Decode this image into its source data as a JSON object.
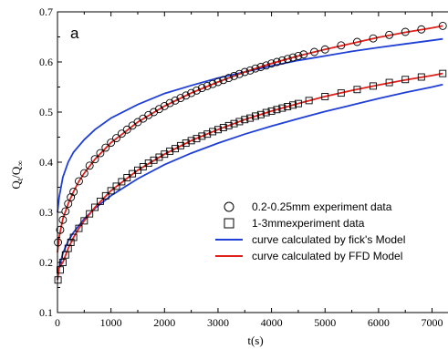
{
  "chart_data": {
    "type": "scatter",
    "panel_label": "a",
    "xlabel": "t(s)",
    "ylabel": "Q_t/Q_∞",
    "xlim": [
      0,
      7400
    ],
    "ylim": [
      0.1,
      0.7
    ],
    "x_ticks": [
      0,
      1000,
      2000,
      3000,
      4000,
      5000,
      6000,
      7000
    ],
    "y_ticks": [
      0.1,
      0.2,
      0.3,
      0.4,
      0.5,
      0.6,
      0.7
    ],
    "legend_position": "lower-right",
    "grid": false,
    "series": [
      {
        "name": "0.2-0.25mm experiment data",
        "kind": "scatter",
        "marker": "circle",
        "color": "#000000",
        "x": [
          10,
          50,
          100,
          150,
          200,
          250,
          300,
          400,
          500,
          600,
          700,
          800,
          900,
          1000,
          1100,
          1200,
          1300,
          1400,
          1500,
          1600,
          1700,
          1800,
          1900,
          2000,
          2100,
          2200,
          2300,
          2400,
          2500,
          2600,
          2700,
          2800,
          2900,
          3000,
          3100,
          3200,
          3300,
          3400,
          3500,
          3600,
          3700,
          3800,
          3900,
          4000,
          4100,
          4200,
          4300,
          4400,
          4500,
          4600,
          4800,
          5000,
          5300,
          5600,
          5900,
          6200,
          6500,
          6800,
          7200
        ],
        "y": [
          0.24,
          0.265,
          0.285,
          0.302,
          0.317,
          0.33,
          0.341,
          0.362,
          0.378,
          0.393,
          0.406,
          0.418,
          0.429,
          0.439,
          0.448,
          0.457,
          0.465,
          0.473,
          0.48,
          0.487,
          0.494,
          0.5,
          0.506,
          0.512,
          0.518,
          0.523,
          0.528,
          0.533,
          0.538,
          0.543,
          0.548,
          0.552,
          0.556,
          0.56,
          0.564,
          0.568,
          0.572,
          0.576,
          0.58,
          0.583,
          0.587,
          0.59,
          0.593,
          0.597,
          0.6,
          0.603,
          0.606,
          0.609,
          0.612,
          0.615,
          0.62,
          0.625,
          0.633,
          0.64,
          0.647,
          0.654,
          0.66,
          0.665,
          0.672
        ]
      },
      {
        "name": "1-3mmexperiment data",
        "kind": "scatter",
        "marker": "square",
        "color": "#000000",
        "x": [
          10,
          50,
          100,
          150,
          200,
          250,
          300,
          400,
          500,
          600,
          700,
          800,
          900,
          1000,
          1100,
          1200,
          1300,
          1400,
          1500,
          1600,
          1700,
          1800,
          1900,
          2000,
          2100,
          2200,
          2300,
          2400,
          2500,
          2600,
          2700,
          2800,
          2900,
          3000,
          3100,
          3200,
          3300,
          3400,
          3500,
          3600,
          3700,
          3800,
          3900,
          4000,
          4100,
          4200,
          4300,
          4400,
          4500,
          4700,
          5000,
          5300,
          5600,
          5900,
          6200,
          6500,
          6800,
          7200
        ],
        "y": [
          0.165,
          0.185,
          0.2,
          0.215,
          0.228,
          0.24,
          0.25,
          0.268,
          0.283,
          0.297,
          0.31,
          0.322,
          0.333,
          0.343,
          0.352,
          0.361,
          0.369,
          0.377,
          0.384,
          0.391,
          0.398,
          0.404,
          0.41,
          0.416,
          0.422,
          0.427,
          0.433,
          0.438,
          0.443,
          0.447,
          0.452,
          0.456,
          0.461,
          0.465,
          0.469,
          0.473,
          0.477,
          0.481,
          0.485,
          0.488,
          0.492,
          0.495,
          0.499,
          0.502,
          0.505,
          0.508,
          0.511,
          0.514,
          0.517,
          0.523,
          0.531,
          0.538,
          0.545,
          0.552,
          0.559,
          0.565,
          0.57,
          0.577
        ]
      },
      {
        "name": "curve calculated by fick's Model",
        "kind": "line",
        "color": "#1f3fd6",
        "x": [
          0,
          30,
          100,
          200,
          300,
          500,
          700,
          1000,
          1500,
          2000,
          2500,
          3000,
          3500,
          4000,
          4500,
          5000,
          5500,
          6000,
          6500,
          7000,
          7200
        ],
        "y": [
          0.3,
          0.33,
          0.37,
          0.4,
          0.42,
          0.445,
          0.465,
          0.488,
          0.515,
          0.537,
          0.553,
          0.568,
          0.58,
          0.592,
          0.603,
          0.612,
          0.621,
          0.629,
          0.636,
          0.643,
          0.646
        ]
      },
      {
        "name": "curve calculated by fick's Model",
        "kind": "line",
        "color": "#1f3fd6",
        "x": [
          0,
          30,
          100,
          200,
          300,
          500,
          700,
          1000,
          1500,
          2000,
          2500,
          3000,
          3500,
          4000,
          4500,
          5000,
          5500,
          6000,
          6500,
          7000,
          7200
        ],
        "y": [
          0.165,
          0.19,
          0.218,
          0.243,
          0.26,
          0.287,
          0.308,
          0.333,
          0.367,
          0.395,
          0.418,
          0.438,
          0.456,
          0.472,
          0.487,
          0.501,
          0.514,
          0.527,
          0.539,
          0.55,
          0.555
        ]
      },
      {
        "name": "curve calculated by FFD Model",
        "kind": "line",
        "color": "#e0201a",
        "x": [
          0,
          30,
          100,
          200,
          300,
          400,
          500,
          700,
          1000,
          1500,
          2000,
          2500,
          3000,
          3500,
          4000,
          4500,
          5000,
          5500,
          6000,
          6500,
          7000,
          7200
        ],
        "y": [
          0.22,
          0.25,
          0.287,
          0.317,
          0.341,
          0.362,
          0.378,
          0.406,
          0.439,
          0.48,
          0.512,
          0.538,
          0.56,
          0.58,
          0.597,
          0.612,
          0.625,
          0.637,
          0.649,
          0.659,
          0.668,
          0.672
        ]
      },
      {
        "name": "curve calculated by FFD Model",
        "kind": "line",
        "color": "#e0201a",
        "x": [
          0,
          30,
          100,
          200,
          300,
          400,
          500,
          700,
          1000,
          1500,
          2000,
          2500,
          3000,
          3500,
          4000,
          4500,
          5000,
          5500,
          6000,
          6500,
          7000,
          7200
        ],
        "y": [
          0.165,
          0.19,
          0.2,
          0.228,
          0.25,
          0.268,
          0.283,
          0.31,
          0.343,
          0.384,
          0.416,
          0.443,
          0.465,
          0.485,
          0.502,
          0.517,
          0.531,
          0.543,
          0.554,
          0.564,
          0.573,
          0.577
        ]
      }
    ],
    "legend": [
      {
        "label": "0.2-0.25mm experiment data",
        "symbol": "circle",
        "color": "#000000"
      },
      {
        "label": "1-3mmexperiment data",
        "symbol": "square",
        "color": "#000000"
      },
      {
        "label": "curve calculated by fick's Model",
        "symbol": "line",
        "color": "#1f3fd6"
      },
      {
        "label": "curve calculated by FFD Model",
        "symbol": "line",
        "color": "#e0201a"
      }
    ]
  }
}
